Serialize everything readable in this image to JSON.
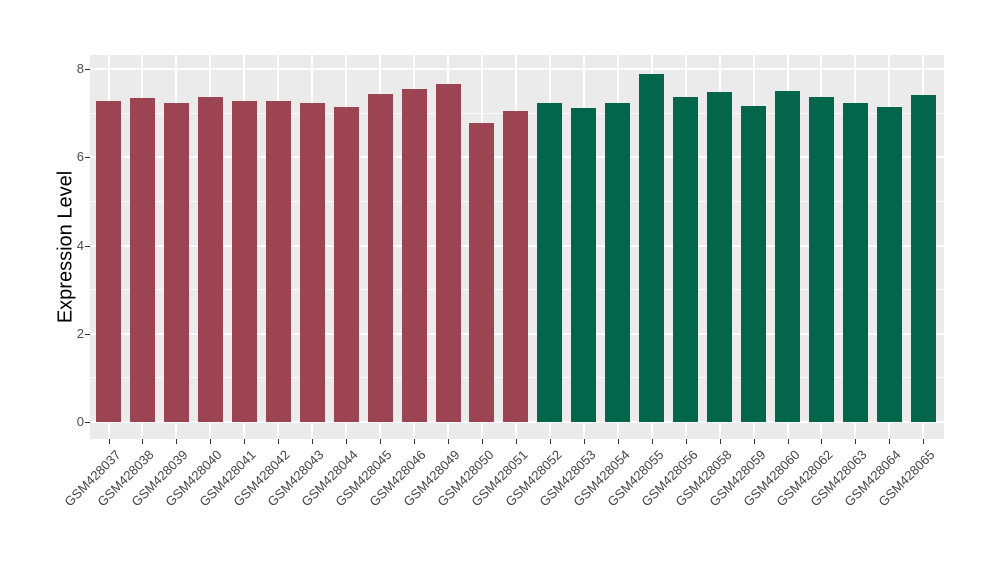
{
  "figure": {
    "background": "#FFFFFF",
    "panel_background": "#EBEBEB",
    "gridline_color": "#FFFFFF",
    "tick_color": "#333333",
    "axis_text_color": "#444444"
  },
  "chart_data": {
    "type": "bar",
    "title": "",
    "xlabel": "",
    "ylabel": "Expression Level",
    "ylim": [
      0,
      8.3
    ],
    "yticks": [
      0,
      2,
      4,
      6,
      8
    ],
    "grid": "white major horizontal + vertical gridlines, faint minor horizontal at odd values, gray panel, no legend, x labels rotated 45deg",
    "groups": [
      {
        "name": "red-group",
        "color": "#9D4452",
        "samples": [
          {
            "label": "GSM428037",
            "value": 7.28
          },
          {
            "label": "GSM428038",
            "value": 7.35
          },
          {
            "label": "GSM428039",
            "value": 7.24
          },
          {
            "label": "GSM428040",
            "value": 7.37
          },
          {
            "label": "GSM428041",
            "value": 7.28
          },
          {
            "label": "GSM428042",
            "value": 7.28
          },
          {
            "label": "GSM428043",
            "value": 7.22
          },
          {
            "label": "GSM428044",
            "value": 7.15
          },
          {
            "label": "GSM428045",
            "value": 7.44
          },
          {
            "label": "GSM428046",
            "value": 7.55
          },
          {
            "label": "GSM428049",
            "value": 7.65
          },
          {
            "label": "GSM428050",
            "value": 6.78
          },
          {
            "label": "GSM428051",
            "value": 7.05
          }
        ]
      },
      {
        "name": "green-group",
        "color": "#03664B",
        "samples": [
          {
            "label": "GSM428052",
            "value": 7.22
          },
          {
            "label": "GSM428053",
            "value": 7.11
          },
          {
            "label": "GSM428054",
            "value": 7.23
          },
          {
            "label": "GSM428055",
            "value": 7.89
          },
          {
            "label": "GSM428056",
            "value": 7.37
          },
          {
            "label": "GSM428058",
            "value": 7.48
          },
          {
            "label": "GSM428059",
            "value": 7.17
          },
          {
            "label": "GSM428060",
            "value": 7.5
          },
          {
            "label": "GSM428062",
            "value": 7.37
          },
          {
            "label": "GSM428063",
            "value": 7.23
          },
          {
            "label": "GSM428064",
            "value": 7.14
          },
          {
            "label": "GSM428065",
            "value": 7.4
          }
        ]
      }
    ]
  }
}
